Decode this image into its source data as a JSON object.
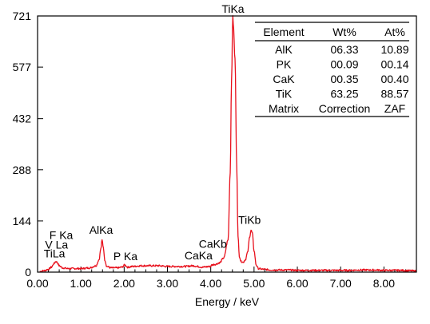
{
  "chart_data": {
    "type": "line",
    "xlabel": "Energy / keV",
    "ylabel": "",
    "xlim": [
      0,
      8.75
    ],
    "ylim": [
      0,
      721
    ],
    "x_ticks": [
      0.0,
      1.0,
      2.0,
      3.0,
      4.0,
      5.0,
      6.0,
      7.0,
      8.0
    ],
    "x_tick_labels": [
      "0.00",
      "1.00",
      "2.00",
      "3.00",
      "4.00",
      "5.00",
      "6.00",
      "7.00",
      "8.00"
    ],
    "y_ticks": [
      0,
      144,
      288,
      432,
      577,
      721
    ],
    "y_tick_labels": [
      "0",
      "144",
      "288",
      "432",
      "577",
      "721"
    ],
    "series_color": "#e8101c",
    "series": [
      {
        "x": [
          0.05,
          0.15,
          0.25,
          0.32,
          0.38,
          0.42,
          0.45,
          0.5,
          0.58,
          0.7,
          0.85,
          1.0,
          1.2,
          1.35,
          1.42,
          1.46,
          1.49,
          1.52,
          1.55,
          1.6,
          1.7,
          1.85,
          1.95,
          2.01,
          2.08,
          2.2,
          2.4,
          2.6,
          2.8,
          3.0,
          3.2,
          3.4,
          3.6,
          3.69,
          3.8,
          4.0,
          4.02,
          4.1,
          4.2,
          4.3,
          4.4,
          4.45,
          4.48,
          4.51,
          4.52,
          4.56,
          4.6,
          4.63,
          4.66,
          4.7,
          4.75,
          4.8,
          4.85,
          4.9,
          4.93,
          4.96,
          5.0,
          5.05,
          5.1,
          5.2,
          5.4,
          5.6,
          5.8,
          6.0,
          6.2,
          6.4,
          6.6,
          6.8,
          7.0,
          7.2,
          7.4,
          7.6,
          7.8,
          8.0,
          8.2,
          8.4,
          8.6,
          8.75
        ],
        "y": [
          2,
          4,
          8,
          14,
          24,
          30,
          28,
          18,
          12,
          10,
          10,
          10,
          12,
          18,
          35,
          65,
          90,
          70,
          35,
          16,
          12,
          12,
          14,
          20,
          14,
          16,
          18,
          18,
          18,
          16,
          16,
          16,
          18,
          16,
          14,
          16,
          20,
          22,
          26,
          40,
          90,
          280,
          540,
          721,
          700,
          600,
          300,
          100,
          45,
          30,
          28,
          35,
          55,
          100,
          118,
          110,
          60,
          20,
          10,
          8,
          6,
          6,
          6,
          5,
          5,
          5,
          5,
          5,
          5,
          5,
          6,
          6,
          6,
          5,
          5,
          5,
          4,
          3
        ]
      }
    ],
    "annotations": [
      {
        "text": "TiKa",
        "x": 4.51,
        "y": 721
      },
      {
        "text": "TiKb",
        "x": 4.93,
        "y": 118
      },
      {
        "text": "AlKa",
        "x": 1.49,
        "y": 90
      },
      {
        "text": "F Ka",
        "x": 0.55,
        "y": 80
      },
      {
        "text": "V La",
        "x": 0.45,
        "y": 50
      },
      {
        "text": "TiLa",
        "x": 0.42,
        "y": 30
      },
      {
        "text": "P Ka",
        "x": 2.01,
        "y": 20
      },
      {
        "text": "CaKb",
        "x": 4.02,
        "y": 50
      },
      {
        "text": "CaKa",
        "x": 3.69,
        "y": 20
      }
    ],
    "table": {
      "headers": [
        "Element",
        "Wt%",
        "At%"
      ],
      "rows": [
        [
          "AlK",
          "06.33",
          "10.89"
        ],
        [
          "PK",
          "00.09",
          "00.14"
        ],
        [
          "CaK",
          "00.35",
          "00.40"
        ],
        [
          "TiK",
          "63.25",
          "88.57"
        ],
        [
          "Matrix",
          "Correction",
          "ZAF"
        ]
      ]
    }
  }
}
